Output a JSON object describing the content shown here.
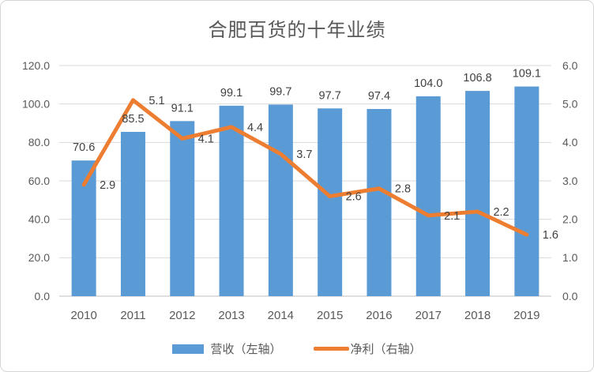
{
  "frame": {
    "background": "#ffffff",
    "border_color": "#d6d6d6"
  },
  "chart_data": {
    "type": "bar+line",
    "title": "合肥百货的十年业绩",
    "categories": [
      "2010",
      "2011",
      "2012",
      "2013",
      "2014",
      "2015",
      "2016",
      "2017",
      "2018",
      "2019"
    ],
    "series": [
      {
        "name": "营收（左轴）",
        "type": "bar",
        "axis": "left",
        "color": "#5B9BD5",
        "values": [
          70.6,
          85.5,
          91.1,
          99.1,
          99.7,
          97.7,
          97.4,
          104.0,
          106.8,
          109.1
        ],
        "labels": [
          "70.6",
          "85.5",
          "91.1",
          "99.1",
          "99.7",
          "97.7",
          "97.4",
          "104.0",
          "106.8",
          "109.1"
        ]
      },
      {
        "name": "净利（右轴）",
        "type": "line",
        "axis": "right",
        "color": "#ED7D31",
        "values": [
          2.9,
          5.1,
          4.1,
          4.4,
          3.7,
          2.6,
          2.8,
          2.1,
          2.2,
          1.6
        ],
        "labels": [
          "2.9",
          "5.1",
          "4.1",
          "4.4",
          "3.7",
          "2.6",
          "2.8",
          "2.1",
          "2.2",
          "1.6"
        ]
      }
    ],
    "left_axis": {
      "min": 0,
      "max": 120,
      "step": 20,
      "tick_values": [
        0,
        20,
        40,
        60,
        80,
        100,
        120
      ],
      "tick_labels": [
        "0.0",
        "20.0",
        "40.0",
        "60.0",
        "80.0",
        "100.0",
        "120.0"
      ]
    },
    "right_axis": {
      "min": 0,
      "max": 6,
      "step": 1,
      "tick_values": [
        0,
        1,
        2,
        3,
        4,
        5,
        6
      ],
      "tick_labels": [
        "0.0",
        "1.0",
        "2.0",
        "3.0",
        "4.0",
        "5.0",
        "6.0"
      ]
    },
    "grid": true,
    "data_labels": true,
    "legend_position": "bottom",
    "colors": {
      "gridline": "#d9d9d9",
      "axis_line": "#bfbfbf",
      "tick_text": "#595959",
      "data_label_text": "#404040"
    }
  },
  "legend": {
    "items": [
      {
        "label": "营收（左轴）",
        "swatch": "bar",
        "color": "#5B9BD5"
      },
      {
        "label": "净利（右轴）",
        "swatch": "line",
        "color": "#ED7D31"
      }
    ]
  }
}
